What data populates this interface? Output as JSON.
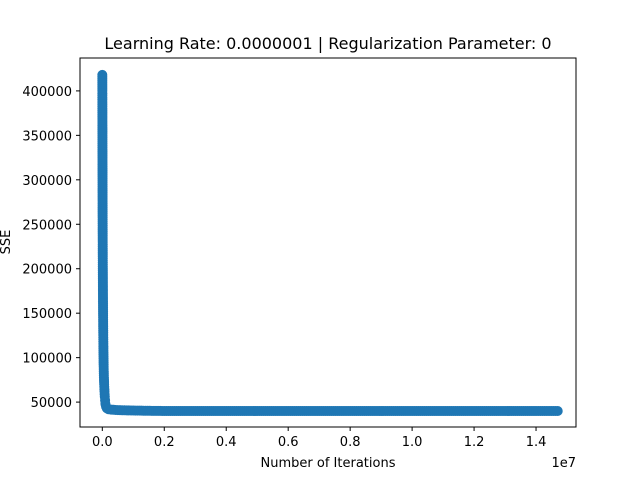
{
  "chart_data": {
    "type": "scatter",
    "title": "Learning Rate: 0.0000001 | Regularization Parameter: 0",
    "xlabel": "Number of Iterations",
    "ylabel": "SSE",
    "x_offset_label": "1e7",
    "xlim": [
      -0.072,
      1.529
    ],
    "ylim": [
      22000,
      437000
    ],
    "x_scale": 10000000,
    "x_ticks": [
      0.0,
      0.2,
      0.4,
      0.6,
      0.8,
      1.0,
      1.2,
      1.4
    ],
    "x_tick_labels": [
      "0.0",
      "0.2",
      "0.4",
      "0.6",
      "0.8",
      "1.0",
      "1.2",
      "1.4"
    ],
    "y_ticks": [
      50000,
      100000,
      150000,
      200000,
      250000,
      300000,
      350000,
      400000
    ],
    "y_tick_labels": [
      "50000",
      "100000",
      "150000",
      "200000",
      "250000",
      "300000",
      "350000",
      "400000"
    ],
    "grid": false,
    "legend": "none",
    "marker_color": "#1f77b4",
    "series": [
      {
        "x": [
          0,
          0.0001,
          0.0002,
          0.0004,
          0.0006,
          0.0008,
          0.001,
          0.0013,
          0.0016,
          0.002,
          0.0025,
          0.003,
          0.0036,
          0.0043,
          0.005,
          0.006,
          0.007,
          0.008,
          0.009,
          0.01,
          0.012,
          0.015,
          0.02,
          0.03,
          0.05,
          0.1,
          0.2,
          0.3,
          0.4,
          0.5,
          0.6,
          0.7,
          0.8,
          0.9,
          1.0,
          1.1,
          1.2,
          1.3,
          1.4,
          1.47
        ],
        "y": [
          418000,
          400000,
          380000,
          350000,
          320000,
          290000,
          260000,
          230000,
          200000,
          175000,
          150000,
          128000,
          108000,
          92000,
          80000,
          70000,
          62000,
          56000,
          52000,
          48000,
          45000,
          43000,
          42000,
          41500,
          41000,
          40500,
          40000,
          40000,
          40000,
          40000,
          40000,
          40000,
          40000,
          40000,
          40000,
          40000,
          40000,
          40000,
          40000,
          40000
        ]
      }
    ]
  }
}
